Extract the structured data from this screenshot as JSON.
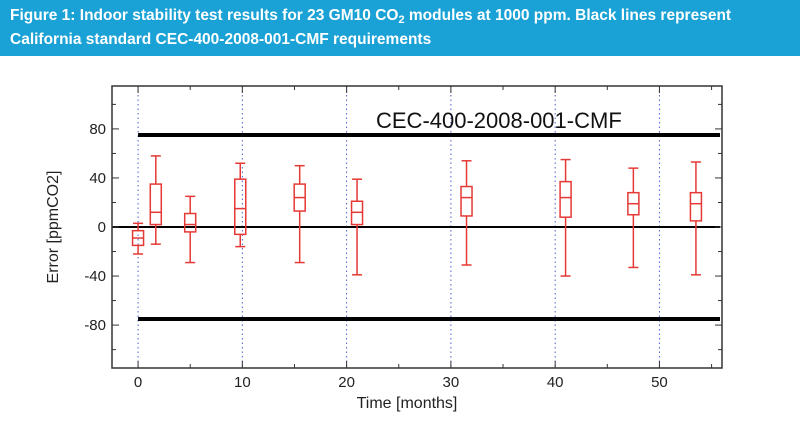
{
  "caption": {
    "part1": "Figure 1: Indoor stability test results for 23 GM10 CO",
    "sub": "2",
    "part2": " modules at 1000 ppm. Black lines represent California standard CEC-400-2008-001-CMF requirements"
  },
  "chart_data": {
    "type": "box",
    "xlabel": "Time [months]",
    "ylabel": "Error [ppmCO2]",
    "xlim": [
      -2.5,
      56
    ],
    "ylim": [
      -115,
      115
    ],
    "x_ticks": [
      0,
      10,
      20,
      30,
      40,
      50
    ],
    "y_ticks": [
      -80,
      -40,
      0,
      40,
      80
    ],
    "grid": "dotted vertical",
    "reference_lines": [
      {
        "y": 75,
        "color": "#000000"
      },
      {
        "y": 0,
        "color": "#000000"
      },
      {
        "y": -75,
        "color": "#000000"
      }
    ],
    "annotation": "CEC-400-2008-001-CMF",
    "box_color": "#e53935",
    "boxes": [
      {
        "x": 0,
        "min": -22,
        "q1": -15,
        "median": -9,
        "q3": -3,
        "max": 3
      },
      {
        "x": 1.7,
        "min": -14,
        "q1": 2,
        "median": 12,
        "q3": 35,
        "max": 58
      },
      {
        "x": 5,
        "min": -29,
        "q1": -4,
        "median": 2,
        "q3": 11,
        "max": 25
      },
      {
        "x": 9.8,
        "min": -16,
        "q1": -6,
        "median": 15,
        "q3": 39,
        "max": 52
      },
      {
        "x": 15.5,
        "min": -29,
        "q1": 13,
        "median": 24,
        "q3": 35,
        "max": 50
      },
      {
        "x": 21,
        "min": -39,
        "q1": 2,
        "median": 12,
        "q3": 21,
        "max": 39
      },
      {
        "x": 31.5,
        "min": -31,
        "q1": 9,
        "median": 24,
        "q3": 33,
        "max": 54
      },
      {
        "x": 41,
        "min": -40,
        "q1": 8,
        "median": 24,
        "q3": 37,
        "max": 55
      },
      {
        "x": 47.5,
        "min": -33,
        "q1": 10,
        "median": 19,
        "q3": 28,
        "max": 48
      },
      {
        "x": 53.5,
        "min": -39,
        "q1": 5,
        "median": 19,
        "q3": 28,
        "max": 53
      }
    ]
  }
}
